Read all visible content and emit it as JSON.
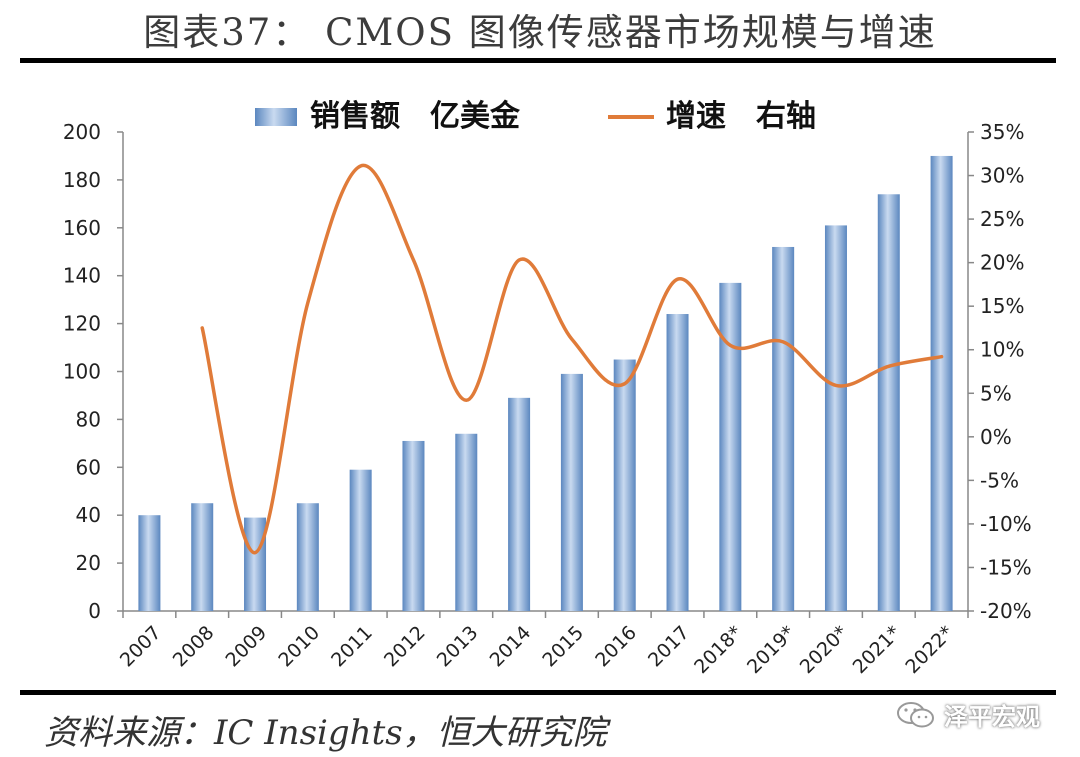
{
  "figure": {
    "title": "图表37： CMOS 图像传感器市场规模与增速",
    "source": "资料来源：IC Insights，恒大研究院",
    "watermark": "泽平宏观"
  },
  "colors": {
    "bar_light": "#c9daf0",
    "bar_dark": "#5b87bf",
    "line": "#e07b39",
    "axis": "#888888"
  },
  "chart_data": {
    "type": "bar",
    "categories": [
      "2007",
      "2008",
      "2009",
      "2010",
      "2011",
      "2012",
      "2013",
      "2014",
      "2015",
      "2016",
      "2017",
      "2018*",
      "2019*",
      "2020*",
      "2021*",
      "2022*"
    ],
    "series": [
      {
        "name": "销售额　亿美金",
        "type": "bar",
        "axis": "left",
        "values": [
          40,
          45,
          39,
          45,
          59,
          71,
          74,
          89,
          99,
          105,
          124,
          137,
          152,
          161,
          174,
          190
        ]
      },
      {
        "name": "增速　右轴",
        "type": "line",
        "axis": "right",
        "values": [
          null,
          12.5,
          -13.3,
          15.4,
          31.1,
          20.3,
          4.2,
          20.3,
          11.2,
          6.1,
          18.1,
          10.5,
          10.9,
          5.9,
          8.1,
          9.2
        ]
      }
    ],
    "ylim_left": [
      0,
      200
    ],
    "yticks_left": [
      "0",
      "20",
      "40",
      "60",
      "80",
      "100",
      "120",
      "140",
      "160",
      "180",
      "200"
    ],
    "ylim_right": [
      -20,
      35
    ],
    "yticks_right": [
      "-20%",
      "-15%",
      "-10%",
      "-5%",
      "0%",
      "5%",
      "10%",
      "15%",
      "20%",
      "25%",
      "30%",
      "35%"
    ],
    "grid": false,
    "legend_position": "top"
  }
}
